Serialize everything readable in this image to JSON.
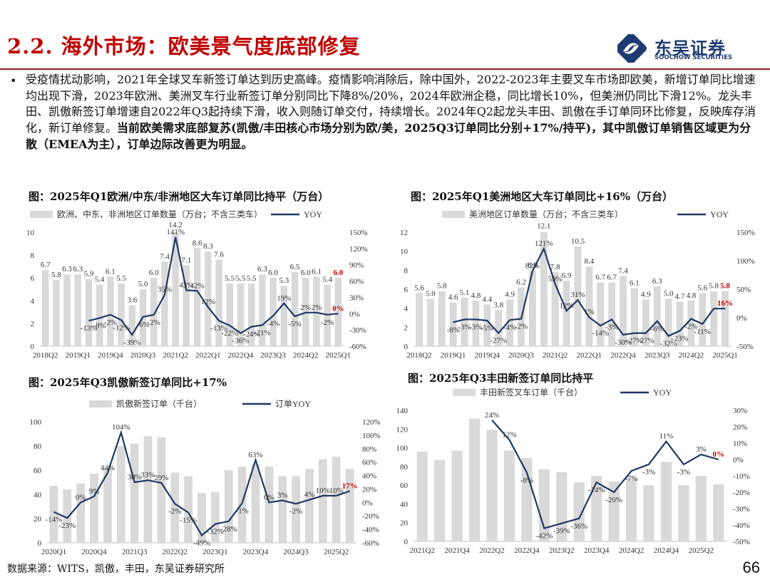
{
  "header": {
    "title": "2.2. 海外市场：欧美景气度底部修复",
    "logo_name": "东吴证券",
    "logo_sub": "SOOCHOW SECURITIES"
  },
  "body": {
    "bullet": "•",
    "para_normal": "受疫情扰动影响，2021年全球叉车新签订单达到历史高峰。疫情影响消除后，除中国外，2022-2023年主要叉车市场即欧美，新增订单同比增速均出现下滑，2023年欧洲、美洲叉车行业新签订单分别同比下降8%/20%，2024年欧洲企稳，同比增长10%，但美洲仍同比下滑12%。龙头丰田、凯傲新签订单增速自2022年Q3起持续下滑，收入则随订单交付，持续增长。2024年Q2起龙头丰田、凯傲在手订单同环比修复，反映库存消化，新订单修复。",
    "para_bold": "当前欧美需求底部复苏(凯傲/丰田核心市场分别为欧/美，2025Q3订单同比分别+17%/持平)，其中凯傲订单销售区域更为分散（EMEA为主），订单边际改善更为明显。"
  },
  "footer": {
    "source": "数据来源：WITS，凯傲，丰田，东吴证券研究所",
    "page": "66"
  },
  "colors": {
    "red": "#c00000",
    "bar": "#d9d9d9",
    "line": "#1f3864",
    "navy": "#1f3b73"
  },
  "chart_data": [
    {
      "type": "bar",
      "title": "图：2025年Q1欧洲/中东/非洲地区大车订单同比持平（万台）",
      "bar_legend": "欧洲、中东、非洲地区订单数量（万台；不含三类车）",
      "line_legend": "YOY",
      "categories": [
        "2018Q2",
        "2018Q3",
        "2018Q4",
        "2019Q1",
        "2019Q2",
        "2019Q3",
        "2019Q4",
        "2020Q1",
        "2020Q2",
        "2020Q3",
        "2020Q4",
        "2021Q1",
        "2021Q2",
        "2021Q3",
        "2021Q4",
        "2022Q1",
        "2022Q2",
        "2022Q3",
        "2022Q4",
        "2023Q1",
        "2023Q2",
        "2023Q3",
        "2023Q4",
        "2024Q1",
        "2024Q2",
        "2024Q3",
        "2024Q4",
        "2025Q1"
      ],
      "tick_labels": [
        "2018Q2",
        "2019Q1",
        "2019Q4",
        "2020Q3",
        "2021Q2",
        "2022Q1",
        "2022Q4",
        "2023Q3",
        "2024Q2",
        "2025Q1"
      ],
      "values": [
        6.7,
        5.8,
        6.3,
        6.3,
        5.9,
        5.4,
        6.1,
        5.5,
        3.6,
        5.0,
        6.0,
        7.4,
        14.2,
        7.1,
        8.6,
        8.3,
        7.6,
        5.5,
        5.5,
        5.5,
        6.3,
        6.0,
        5.3,
        6.5,
        6.0,
        6.1,
        5.4,
        6.0
      ],
      "value_labels": [
        "6.7",
        "5.8",
        "6.3",
        "6.3",
        "5.9",
        "5.4",
        "6.1",
        "5.5",
        "3.6",
        "5.0",
        "6.0",
        "7.4",
        "14.2",
        "7.1",
        "8.6",
        "8.3",
        "7.6",
        "5.5",
        "5.5",
        "5.5",
        "6.3",
        "6.0",
        "5.3",
        "6.5",
        "6.0",
        "6.1",
        "5.4",
        "6.0"
      ],
      "yoy": [
        null,
        null,
        null,
        null,
        -13,
        -8,
        -2,
        -12,
        -39,
        -6,
        -2,
        35,
        141,
        43,
        42,
        12,
        -13,
        -22,
        -36,
        -24,
        -21,
        -4,
        19,
        -5,
        2,
        2,
        -2,
        0
      ],
      "yoy_labels": [
        "",
        "",
        "",
        "",
        "-13%",
        "-8%",
        "-2%",
        "-12%",
        "-39%",
        "-6%",
        "-2%",
        "35%",
        "141%",
        "43%",
        "42%",
        "12%",
        "-13%",
        "-22%",
        "-36%",
        "-24%",
        "-21%",
        "-4%",
        "19%",
        "-5%",
        "2%",
        "2%",
        "-2%",
        "0%"
      ],
      "ylim": [
        0,
        10
      ],
      "yticks": [
        "0",
        "2",
        "4",
        "6",
        "8",
        "10"
      ],
      "y2lim": [
        -60,
        150
      ],
      "y2ticks": [
        "-60%",
        "-30%",
        "0%",
        "30%",
        "60%",
        "90%",
        "120%",
        "150%"
      ],
      "highlight_value": "6.0",
      "highlight_yoy": "0%"
    },
    {
      "type": "bar",
      "title": "图：2025年Q1美洲地区大车订单同比+16%（万台）",
      "bar_legend": "美洲地区订单数量（万台；不含三类车）",
      "line_legend": "YOY",
      "categories": [
        "2018Q2",
        "2018Q3",
        "2018Q4",
        "2019Q1",
        "2019Q2",
        "2019Q3",
        "2019Q4",
        "2020Q1",
        "2020Q2",
        "2020Q3",
        "2020Q4",
        "2021Q1",
        "2021Q2",
        "2021Q3",
        "2021Q4",
        "2022Q1",
        "2022Q2",
        "2022Q3",
        "2022Q4",
        "2023Q1",
        "2023Q2",
        "2023Q3",
        "2023Q4",
        "2024Q1",
        "2024Q2",
        "2024Q3",
        "2024Q4",
        "2025Q1"
      ],
      "tick_labels": [
        "2018Q2",
        "2019Q1",
        "2019Q4",
        "2020Q3",
        "2021Q2",
        "2022Q1",
        "2022Q4",
        "2023Q3",
        "2024Q2",
        "2025Q1"
      ],
      "values": [
        5.6,
        5.0,
        5.8,
        4.6,
        5.1,
        4.8,
        4.4,
        3.8,
        4.9,
        6.2,
        8.0,
        12.1,
        7.8,
        6.9,
        10.5,
        8.4,
        6.7,
        6.7,
        7.4,
        6.1,
        4.9,
        6.3,
        5.0,
        4.7,
        4.8,
        5.6,
        5.8,
        5.8
      ],
      "value_labels": [
        "5.6",
        "5.0",
        "5.8",
        "4.6",
        "5.1",
        "4.8",
        "4.4",
        "3.8",
        "4.9",
        "6.2",
        "8.0",
        "12.1",
        "7.8",
        "6.9",
        "10.5",
        "8.4",
        "6.7",
        "6.7",
        "7.4",
        "6.1",
        "4.9",
        "6.3",
        "5.0",
        "4.7",
        "4.8",
        "5.6",
        "5.8",
        "5.8"
      ],
      "yoy": [
        null,
        null,
        null,
        -8,
        -3,
        -3,
        -5,
        -27,
        -4,
        -2,
        82,
        121,
        59,
        12,
        31,
        1,
        -14,
        -3,
        -30,
        -27,
        -27,
        -6,
        -32,
        -23,
        -2,
        -11,
        16,
        16
      ],
      "yoy_labels": [
        "",
        "",
        "",
        "-8%",
        "-3%",
        "-3%",
        "-5%",
        "-27%",
        "-4%",
        "-2%",
        "82%",
        "121%",
        "59%",
        "12%",
        "31%",
        "1%",
        "-14%",
        "-3%",
        "-30%",
        "-27%",
        "-27%",
        "-6%",
        "-32%",
        "-23%",
        "-2%",
        "-11%",
        "",
        "16%"
      ],
      "ylim": [
        0,
        12
      ],
      "yticks": [
        "0",
        "2",
        "4",
        "6",
        "8",
        "10",
        "12"
      ],
      "y2lim": [
        -50,
        150
      ],
      "y2ticks": [
        "-50%",
        "0%",
        "50%",
        "100%",
        "150%"
      ],
      "highlight_value": "5.8",
      "highlight_yoy": "16%"
    },
    {
      "type": "bar",
      "title": "图：2025年Q3凯傲新签订单同比+17%",
      "bar_legend": "凯傲新签订单（千台）",
      "line_legend": "订单YOY",
      "categories": [
        "2020Q1",
        "2020Q2",
        "2020Q3",
        "2020Q4",
        "2021Q1",
        "2021Q2",
        "2021Q3",
        "2021Q4",
        "2022Q1",
        "2022Q2",
        "2022Q3",
        "2022Q4",
        "2023Q1",
        "2023Q2",
        "2023Q3",
        "2023Q4",
        "2024Q1",
        "2024Q2",
        "2024Q3",
        "2024Q4",
        "2025Q1",
        "2025Q2",
        "2025Q3"
      ],
      "tick_labels": [
        "2020Q1",
        "2020Q4",
        "2021Q3",
        "2022Q2",
        "2023Q1",
        "2023Q4",
        "2024Q3",
        "2025Q2"
      ],
      "values": [
        47,
        44,
        49,
        57,
        62,
        80,
        82,
        88,
        87,
        58,
        55,
        41,
        42,
        60,
        63,
        65,
        63,
        55,
        55,
        61,
        69,
        71,
        61
      ],
      "yoy": [
        -14,
        -23,
        0,
        9,
        44,
        104,
        30,
        33,
        29,
        -2,
        -15,
        -49,
        -32,
        -28,
        -1,
        63,
        0,
        3,
        -2,
        4,
        10,
        10,
        17
      ],
      "yoy_labels": [
        "-14%",
        "-23%",
        "0%",
        "9%",
        "44%",
        "104%",
        "30%",
        "33%",
        "29%",
        "-2%",
        "-15%",
        "-49%",
        "-32%",
        "-28%",
        "-1%",
        "63%",
        "0%",
        "3%",
        "-2%",
        "4%",
        "10%",
        "10%",
        "17%"
      ],
      "ylim": [
        0,
        100
      ],
      "yticks": [
        "0",
        "20",
        "40",
        "60",
        "80",
        "100"
      ],
      "y2lim": [
        -60,
        120
      ],
      "y2ticks": [
        "-60%",
        "-40%",
        "-20%",
        "0%",
        "20%",
        "40%",
        "60%",
        "80%",
        "100%",
        "120%"
      ],
      "highlight_yoy": "17%"
    },
    {
      "type": "bar",
      "title": "图：2025年Q3丰田新签订单同比持平",
      "bar_legend": "丰田新签叉车订单（千台）",
      "line_legend": "YOY",
      "categories": [
        "2021Q2",
        "2021Q3",
        "2021Q4",
        "2022Q1",
        "2022Q2",
        "2022Q3",
        "2022Q4",
        "2023Q1",
        "2023Q2",
        "2023Q3",
        "2023Q4",
        "2024Q1",
        "2024Q2",
        "2024Q3",
        "2024Q4",
        "2025Q1",
        "2025Q2",
        "2025Q3"
      ],
      "tick_labels": [
        "2021Q2",
        "2021Q4",
        "2022Q2",
        "2022Q4",
        "2023Q2",
        "2023Q4",
        "2024Q2",
        "2024Q4",
        "2025Q2"
      ],
      "values": [
        96,
        87,
        97,
        131,
        119,
        97,
        89,
        77,
        74,
        63,
        70,
        64,
        68,
        60,
        85,
        60,
        70,
        61
      ],
      "yoy": [
        null,
        null,
        null,
        null,
        24,
        12,
        -8,
        -42,
        -39,
        -36,
        -14,
        -20,
        -7,
        -3,
        11,
        -3,
        3,
        0
      ],
      "yoy_labels": [
        "",
        "",
        "",
        "",
        "24%",
        "12%",
        "-8%",
        "-42%",
        "-39%",
        "-36%",
        "-14%",
        "-20%",
        "-7%",
        "-3%",
        "11%",
        "-3%",
        "3%",
        "0%"
      ],
      "ylim": [
        0,
        140
      ],
      "yticks": [
        "0",
        "20",
        "40",
        "60",
        "80",
        "100",
        "120",
        "140"
      ],
      "y2lim": [
        -50,
        30
      ],
      "y2ticks": [
        "-50%",
        "-40%",
        "-30%",
        "-20%",
        "-10%",
        "0%",
        "10%",
        "20%",
        "30%"
      ],
      "highlight_yoy": "0%"
    }
  ]
}
